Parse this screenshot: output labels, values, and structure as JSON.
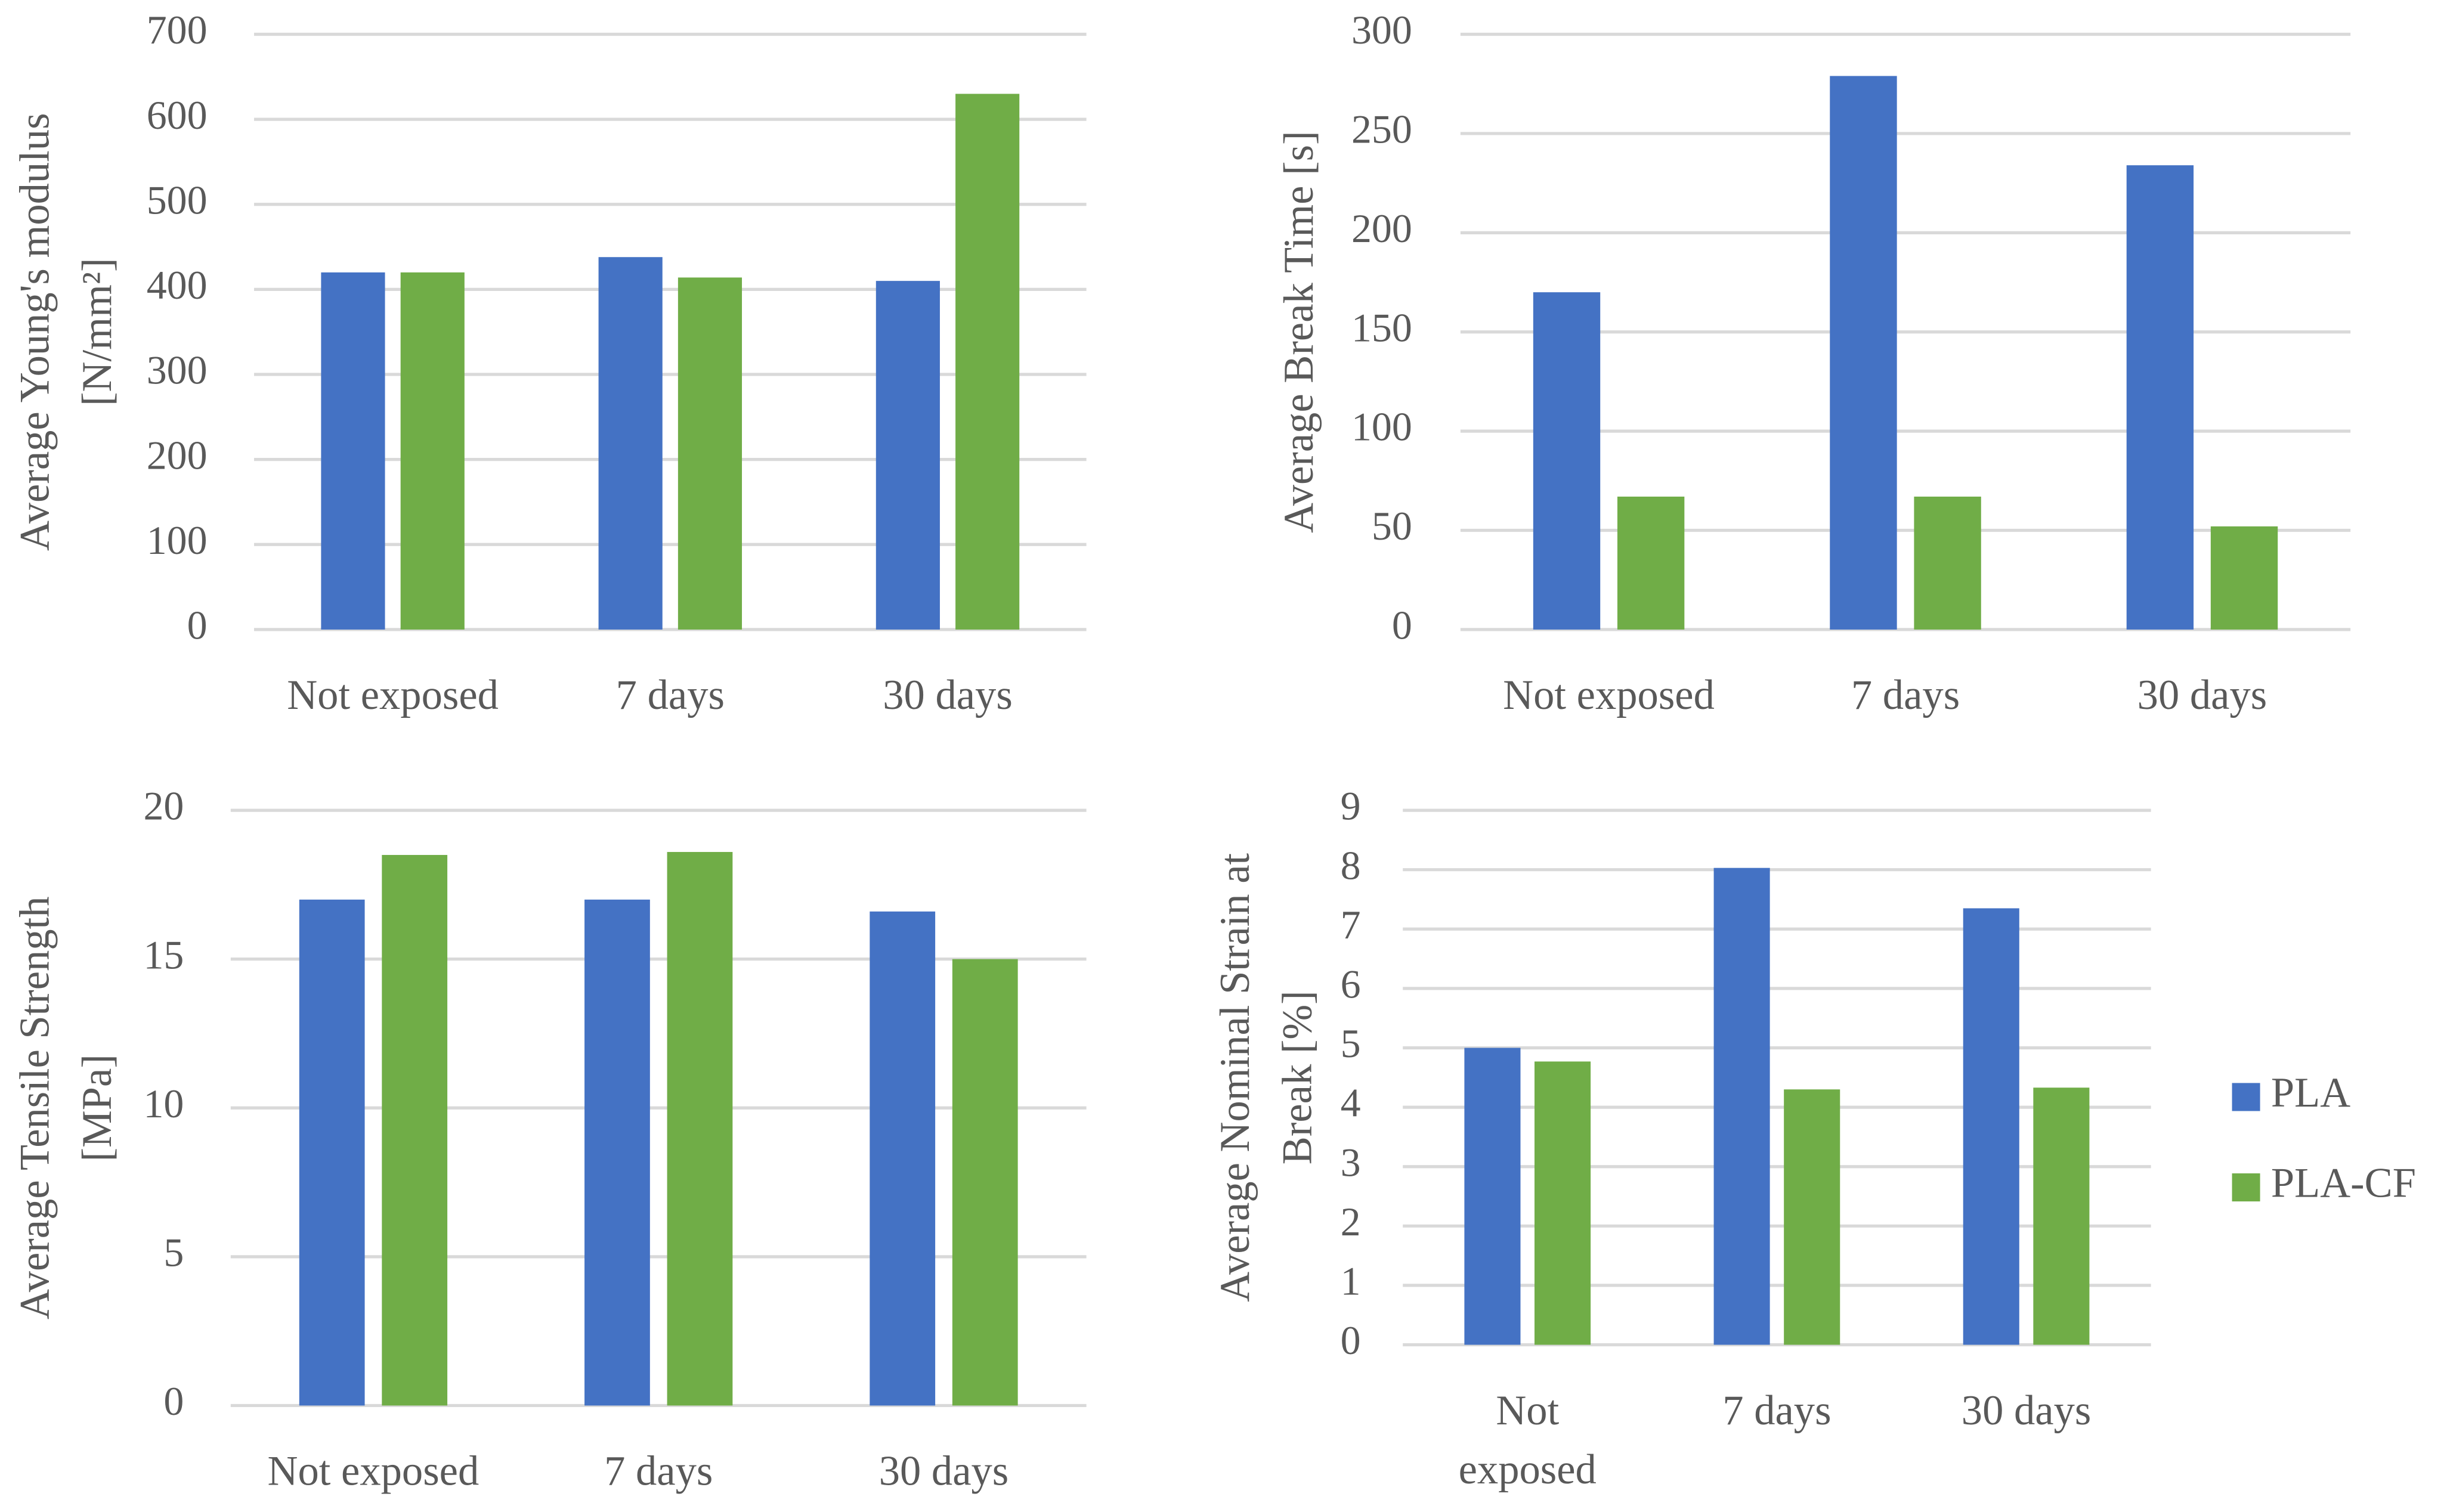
{
  "chart_data": [
    {
      "type": "bar",
      "y_label": [
        "Average Young's modulus",
        "[N/mm²]"
      ],
      "categories": [
        "Not exposed",
        "7 days",
        "30 days"
      ],
      "series": [
        {
          "color": "#4472c4",
          "values": [
            420,
            438,
            410
          ]
        },
        {
          "color": "#70ad47",
          "values": [
            420,
            414,
            630
          ]
        }
      ],
      "ylim": [
        0,
        700
      ],
      "yticks": [
        0,
        100,
        200,
        300,
        400,
        500,
        600,
        700
      ],
      "grid": true
    },
    {
      "type": "bar",
      "y_label": [
        "Average Break Time [s]"
      ],
      "categories": [
        "Not exposed",
        "7 days",
        "30 days"
      ],
      "series": [
        {
          "color": "#4472c4",
          "values": [
            170,
            279,
            234
          ]
        },
        {
          "color": "#70ad47",
          "values": [
            67,
            67,
            52
          ]
        }
      ],
      "ylim": [
        0,
        300
      ],
      "yticks": [
        0,
        50,
        100,
        150,
        200,
        250,
        300
      ],
      "grid": true
    },
    {
      "type": "bar",
      "y_label": [
        "Average Tensile Strength",
        "[MPa]"
      ],
      "categories": [
        "Not exposed",
        "7 days",
        "30 days"
      ],
      "series": [
        {
          "color": "#4472c4",
          "values": [
            17,
            17,
            16.6
          ]
        },
        {
          "color": "#70ad47",
          "values": [
            18.5,
            18.6,
            15
          ]
        }
      ],
      "ylim": [
        0,
        20
      ],
      "yticks": [
        0,
        5,
        10,
        15,
        20
      ],
      "grid": true
    },
    {
      "type": "bar",
      "y_label": [
        "Average Nominal Strain at",
        "Break [%]"
      ],
      "categories": [
        "Not exposed",
        "7 days",
        "30 days"
      ],
      "series": [
        {
          "name": "PLA",
          "color": "#4472c4",
          "values": [
            5,
            8.03,
            7.35
          ]
        },
        {
          "name": "PLA-CF",
          "color": "#70ad47",
          "values": [
            4.77,
            4.3,
            4.33
          ]
        }
      ],
      "ylim": [
        0,
        9
      ],
      "yticks": [
        0,
        1,
        2,
        3,
        4,
        5,
        6,
        7,
        8,
        9
      ],
      "grid": true,
      "legend": "right"
    }
  ]
}
